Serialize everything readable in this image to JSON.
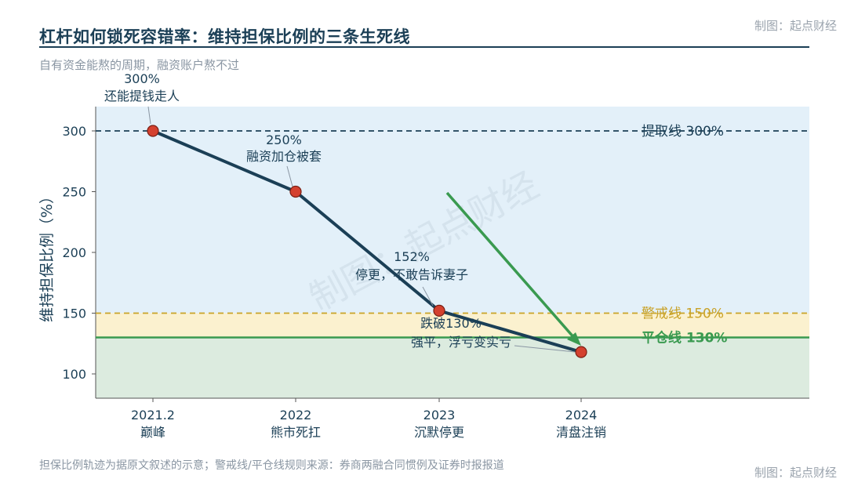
{
  "title": "杠杆如何锁死容错率：维持担保比例的三条生死线",
  "subtitle": "自有资金能熬的周期，融资账户熬不过",
  "credit_top": "制图：起点财经",
  "credit_bottom": "制图：起点财经",
  "footnote": "担保比例轨迹为据原文叙述的示意；警戒线/平仓线规则来源：券商两融合同惯例及证券时报报道",
  "watermark": "制图：起点财经",
  "chart_data": {
    "type": "line",
    "ylabel": "维持担保比例（%）",
    "ylim": [
      80,
      320
    ],
    "yticks": [
      100,
      150,
      200,
      250,
      300
    ],
    "categories": [
      {
        "year": "2021.2",
        "phase": "巅峰"
      },
      {
        "year": "2022",
        "phase": "熊市死扛"
      },
      {
        "year": "2023",
        "phase": "沉默停更"
      },
      {
        "year": "2024",
        "phase": "清盘注销"
      }
    ],
    "series": [
      {
        "values": [
          300,
          250,
          152,
          118
        ],
        "color": "#1b3f56",
        "marker_color": "#d4412f"
      }
    ],
    "reference_lines": [
      {
        "value": 300,
        "label": "提取线 300%",
        "style": "dashed",
        "color": "#1b3f56"
      },
      {
        "value": 150,
        "label": "警戒线 150%",
        "style": "dashed",
        "color": "#c9a227"
      },
      {
        "value": 130,
        "label": "平仓线 130%",
        "style": "solid",
        "color": "#3a9a50"
      }
    ],
    "zones": [
      {
        "from": 150,
        "to": 320,
        "color": "#e3f0f9"
      },
      {
        "from": 130,
        "to": 150,
        "color": "#fbf1cf"
      },
      {
        "from": 80,
        "to": 130,
        "color": "#dcebdf"
      }
    ],
    "annotations": [
      {
        "point": 0,
        "value": "300%",
        "text": "还能提钱走人"
      },
      {
        "point": 1,
        "value": "250%",
        "text": "融资加仓被套"
      },
      {
        "point": 2,
        "value": "152%",
        "text": "停更，不敢告诉妻子"
      },
      {
        "point": 3,
        "value": "跌破130%",
        "text": "强平，浮亏变实亏"
      }
    ],
    "arrow": {
      "color": "#3a9a50"
    },
    "grid": false,
    "legend": "none"
  }
}
